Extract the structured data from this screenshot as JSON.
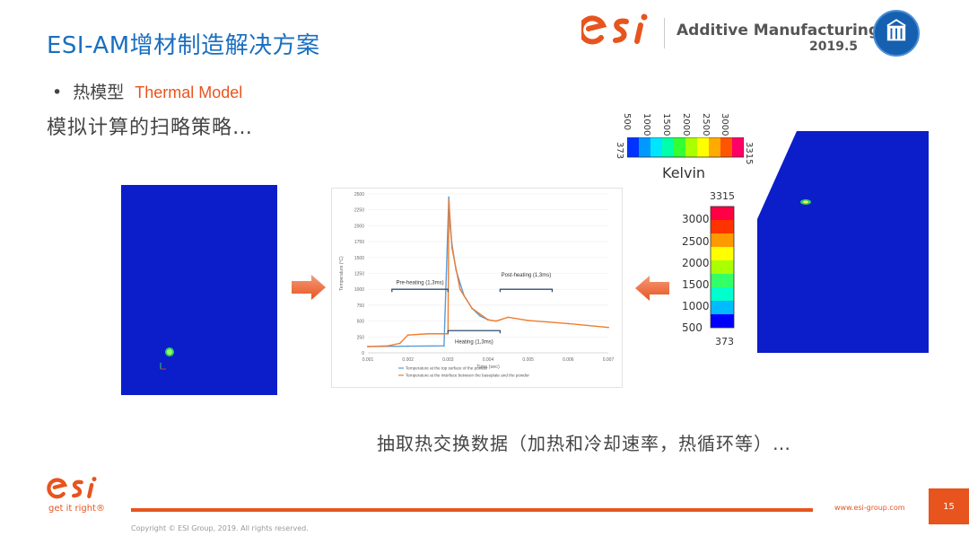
{
  "header": {
    "title": "ESI-AM增材制造解决方案",
    "brand_logo": "esi",
    "brand_name": "Additive Manufacturing",
    "brand_date": "2019.5",
    "emblem_icon": "institution-emblem-icon"
  },
  "content": {
    "bullet_cn": "热模型",
    "bullet_en": "Thermal Model",
    "subtitle": "模拟计算的扫略策略…",
    "bottom_text": "抽取热交换数据（加热和冷却速率，热循环等）…"
  },
  "colors": {
    "accent": "#e7541e",
    "title_blue": "#1a6fc0",
    "sim_blue": "#0b1ec9"
  },
  "chart_data": {
    "type": "line",
    "title": "",
    "xlabel": "Time (sec)",
    "ylabel": "Temperature (°C)",
    "xlim": [
      0.001,
      0.007
    ],
    "ylim": [
      0,
      2500
    ],
    "x_ticks": [
      "0.001",
      "0.002",
      "0.003",
      "0.004",
      "0.005",
      "0.006",
      "0.007"
    ],
    "y_ticks": [
      "0",
      "250",
      "500",
      "750",
      "1000",
      "1250",
      "1500",
      "1750",
      "2000",
      "2250",
      "2500"
    ],
    "series": [
      {
        "name": "Temperature at the top surface of the powder",
        "color": "#5b9bd5",
        "x": [
          0.001,
          0.002,
          0.0029,
          0.00302,
          0.00305,
          0.0031,
          0.0032,
          0.0034,
          0.0036,
          0.0038,
          0.004
        ],
        "y": [
          100,
          105,
          110,
          2450,
          2000,
          1700,
          1300,
          900,
          700,
          580,
          520
        ]
      },
      {
        "name": "Temperature at the interface between the baseplate and the powder",
        "color": "#ed7d31",
        "x": [
          0.001,
          0.0015,
          0.0018,
          0.002,
          0.0025,
          0.003,
          0.00302,
          0.0031,
          0.0033,
          0.0036,
          0.004,
          0.0042,
          0.0045,
          0.005,
          0.006,
          0.007
        ],
        "y": [
          100,
          110,
          150,
          280,
          300,
          300,
          2400,
          1650,
          1000,
          700,
          520,
          500,
          560,
          510,
          460,
          400
        ]
      }
    ],
    "annotations": [
      "Pre-heating (1,3ms)",
      "Heating (1,3ms)",
      "Post-heating (1,3ms)"
    ]
  },
  "legend": {
    "kelvin_label": "Kelvin",
    "h_ticks": [
      "500",
      "1000",
      "1500",
      "2000",
      "2500",
      "3000"
    ],
    "h_min": "373",
    "h_max": "3315",
    "v_ticks": [
      "3000",
      "2500",
      "2000",
      "1500",
      "1000",
      "500"
    ],
    "v_min": "373",
    "v_max": "3315"
  },
  "footer": {
    "tagline": "get it right®",
    "website": "www.esi-group.com",
    "page_number": "15",
    "copyright": "Copyright © ESI Group, 2019. All rights reserved."
  }
}
